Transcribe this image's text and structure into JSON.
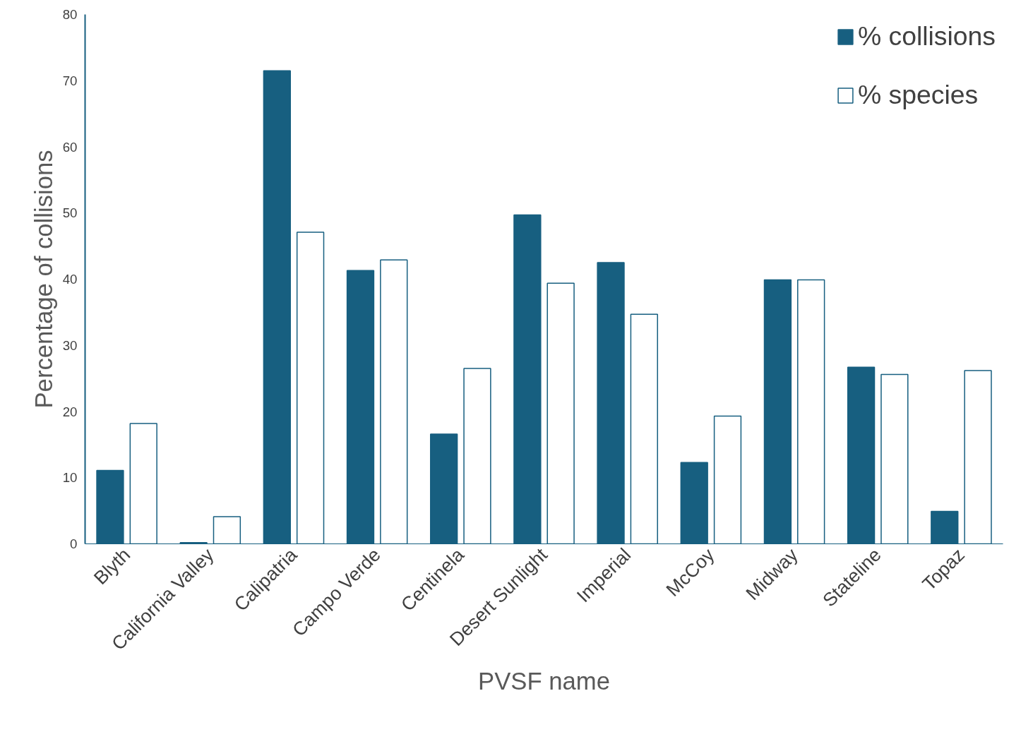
{
  "chart_data": {
    "type": "bar",
    "xlabel": "PVSF name",
    "ylabel": "Percentage of collisions",
    "categories": [
      "Blyth",
      "California Valley",
      "Calipatria",
      "Campo Verde",
      "Centinela",
      "Desert Sunlight",
      "Imperial",
      "McCoy",
      "Midway",
      "Stateline",
      "Topaz"
    ],
    "series": [
      {
        "name": "% collisions",
        "color": "#175f80",
        "values": [
          11.1,
          0.2,
          71.5,
          41.3,
          16.6,
          49.7,
          42.5,
          12.3,
          39.9,
          26.7,
          4.9
        ]
      },
      {
        "name": "% species",
        "color": "#ffffff",
        "values": [
          18.2,
          4.1,
          47.1,
          42.9,
          26.5,
          39.4,
          34.7,
          19.3,
          39.9,
          25.6,
          26.2
        ]
      }
    ],
    "ylim": [
      0,
      80
    ],
    "yticks": [
      0,
      10,
      20,
      30,
      40,
      50,
      60,
      70,
      80
    ],
    "grid": false,
    "legend": "top right"
  }
}
